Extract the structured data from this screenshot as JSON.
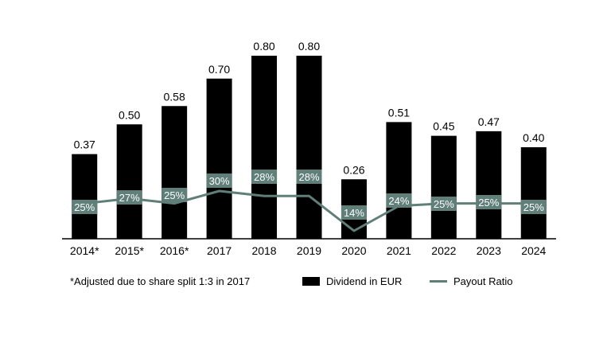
{
  "chart_data": {
    "type": "bar",
    "categories": [
      "2014*",
      "2015*",
      "2016*",
      "2017",
      "2018",
      "2019",
      "2020",
      "2021",
      "2022",
      "2023",
      "2024"
    ],
    "series": [
      {
        "name": "Dividend in EUR",
        "type": "bar",
        "values": [
          0.37,
          0.5,
          0.58,
          0.7,
          0.8,
          0.8,
          0.26,
          0.51,
          0.45,
          0.47,
          0.4
        ],
        "labels": [
          "0.37",
          "0.50",
          "0.58",
          "0.70",
          "0.80",
          "0.80",
          "0.26",
          "0.51",
          "0.45",
          "0.47",
          "0.40"
        ],
        "color": "#000000"
      },
      {
        "name": "Payout Ratio",
        "type": "line",
        "values": [
          25,
          27,
          25,
          30,
          28,
          28,
          14,
          24,
          25,
          25,
          25
        ],
        "labels": [
          "25%",
          "27%",
          "25%",
          "30%",
          "28%",
          "28%",
          "14%",
          "24%",
          "25%",
          "25%",
          "25%"
        ],
        "color": "#5f7f78"
      }
    ],
    "ylim": [
      0,
      1.0
    ],
    "grid": false,
    "legend_position": "bottom-right",
    "footnote": "*Adjusted due to share split 1:3 in 2017"
  }
}
